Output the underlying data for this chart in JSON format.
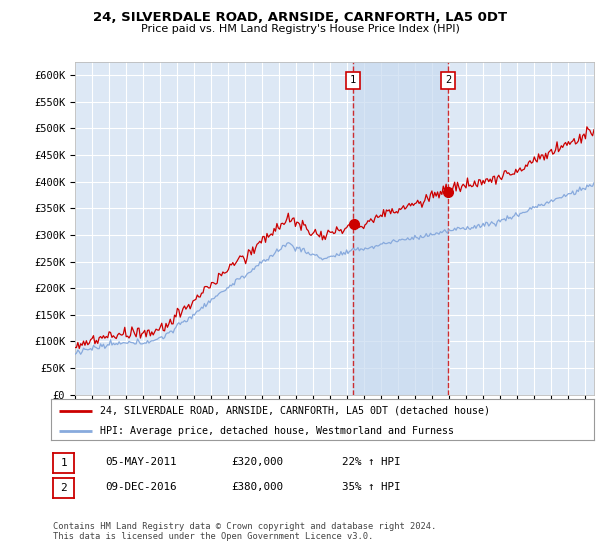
{
  "title": "24, SILVERDALE ROAD, ARNSIDE, CARNFORTH, LA5 0DT",
  "subtitle": "Price paid vs. HM Land Registry's House Price Index (HPI)",
  "ylabel_ticks": [
    "£0",
    "£50K",
    "£100K",
    "£150K",
    "£200K",
    "£250K",
    "£300K",
    "£350K",
    "£400K",
    "£450K",
    "£500K",
    "£550K",
    "£600K"
  ],
  "ytick_values": [
    0,
    50000,
    100000,
    150000,
    200000,
    250000,
    300000,
    350000,
    400000,
    450000,
    500000,
    550000,
    600000
  ],
  "ylim": [
    0,
    625000
  ],
  "background_color": "#ffffff",
  "plot_bg_color": "#dde8f5",
  "grid_color": "#ffffff",
  "red_line_color": "#cc0000",
  "blue_line_color": "#88aadd",
  "marker1_date_x": 2011.35,
  "marker1_price": 320000,
  "marker2_date_x": 2016.93,
  "marker2_price": 380000,
  "vline1_x": 2011.35,
  "vline2_x": 2016.93,
  "legend_line1": "24, SILVERDALE ROAD, ARNSIDE, CARNFORTH, LA5 0DT (detached house)",
  "legend_line2": "HPI: Average price, detached house, Westmorland and Furness",
  "table_row1": [
    "1",
    "05-MAY-2011",
    "£320,000",
    "22% ↑ HPI"
  ],
  "table_row2": [
    "2",
    "09-DEC-2016",
    "£380,000",
    "35% ↑ HPI"
  ],
  "footnote": "Contains HM Land Registry data © Crown copyright and database right 2024.\nThis data is licensed under the Open Government Licence v3.0.",
  "xmin": 1995,
  "xmax": 2025.5
}
